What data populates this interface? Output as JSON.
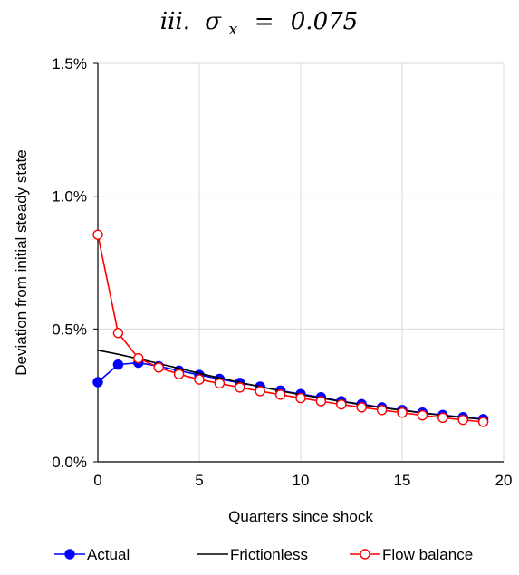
{
  "chart_data": {
    "type": "line",
    "title": {
      "prefix": "iii.",
      "symbol": "σ",
      "subscript": "x",
      "equals": "=",
      "value": "0.075"
    },
    "xlabel": "Quarters since shock",
    "ylabel": "Deviation from initial steady state",
    "xlim": [
      0,
      20
    ],
    "ylim": [
      0,
      1.5
    ],
    "xticks": [
      0,
      5,
      10,
      15,
      20
    ],
    "yticks": [
      0,
      0.5,
      1.0,
      1.5
    ],
    "xtick_labels": [
      "0",
      "5",
      "10",
      "15",
      "20"
    ],
    "ytick_labels": [
      "0.0%",
      "0.5%",
      "1.0%",
      "1.5%"
    ],
    "grid": true,
    "legend_position": "bottom",
    "x": [
      0,
      1,
      2,
      3,
      4,
      5,
      6,
      7,
      8,
      9,
      10,
      11,
      12,
      13,
      14,
      15,
      16,
      17,
      18,
      19
    ],
    "series": [
      {
        "name": "Actual",
        "color": "#0000ff",
        "marker": "filled-circle",
        "values": [
          0.3,
          0.366,
          0.373,
          0.36,
          0.343,
          0.327,
          0.312,
          0.297,
          0.283,
          0.268,
          0.255,
          0.243,
          0.228,
          0.217,
          0.205,
          0.195,
          0.185,
          0.176,
          0.168,
          0.161
        ]
      },
      {
        "name": "Frictionless",
        "color": "#000000",
        "marker": "none",
        "values": [
          0.42,
          0.405,
          0.388,
          0.37,
          0.352,
          0.333,
          0.316,
          0.299,
          0.283,
          0.267,
          0.253,
          0.24,
          0.227,
          0.215,
          0.204,
          0.194,
          0.184,
          0.175,
          0.167,
          0.159
        ]
      },
      {
        "name": "Flow balance",
        "color": "#ff0000",
        "marker": "open-circle",
        "values": [
          0.855,
          0.485,
          0.39,
          0.355,
          0.33,
          0.31,
          0.295,
          0.28,
          0.266,
          0.253,
          0.24,
          0.228,
          0.216,
          0.205,
          0.195,
          0.185,
          0.175,
          0.166,
          0.158,
          0.15
        ]
      }
    ]
  }
}
